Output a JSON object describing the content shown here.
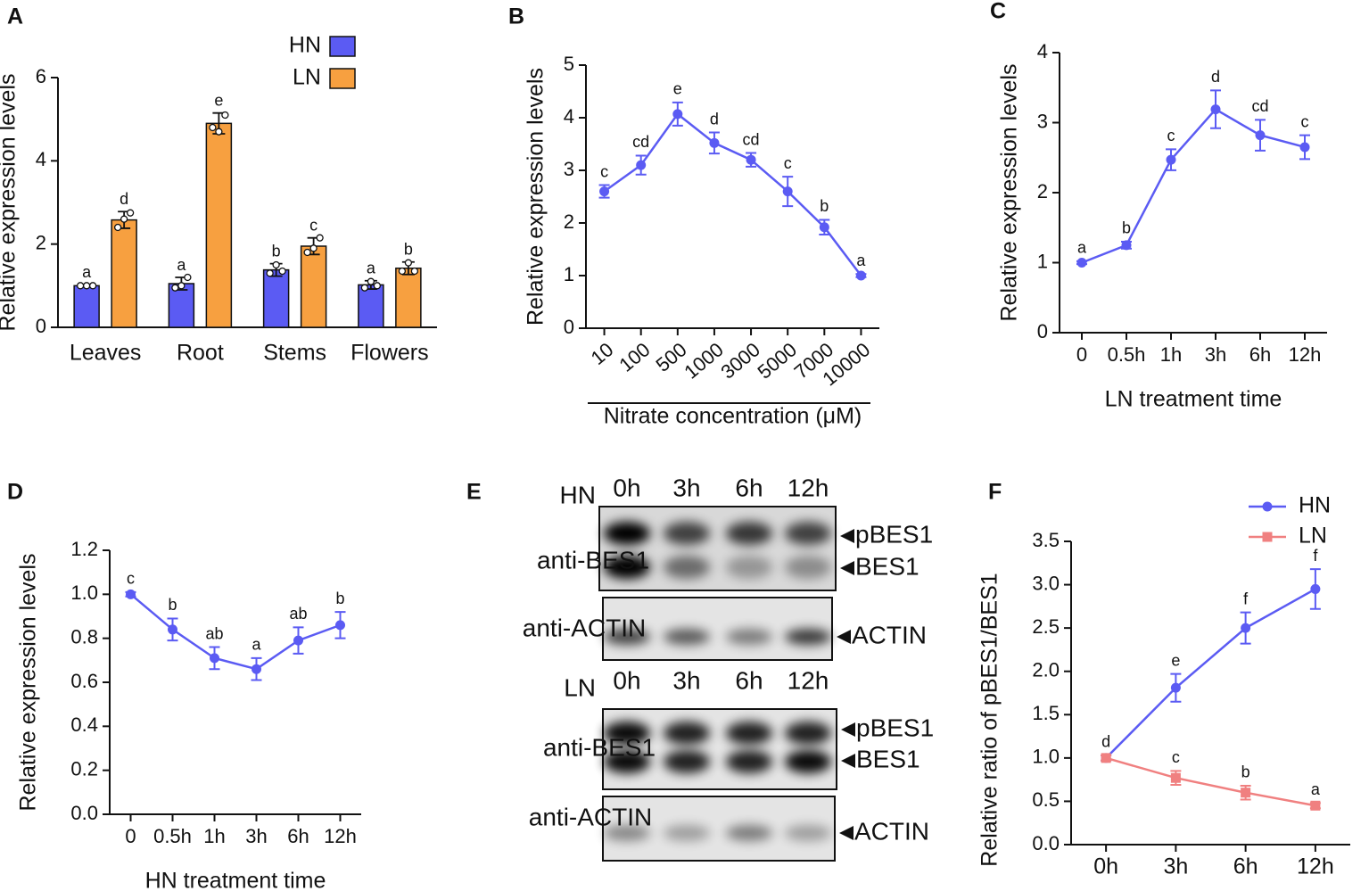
{
  "chart_data": [
    {
      "label": "A",
      "type": "bar",
      "ylabel": "Relative expression levels",
      "categories": [
        "Leaves",
        "Root",
        "Stems",
        "Flowers"
      ],
      "series": [
        {
          "name": "HN",
          "color": "#5b5bf3",
          "values": [
            1.0,
            1.05,
            1.38,
            1.02
          ],
          "errors": [
            0.02,
            0.15,
            0.15,
            0.1
          ],
          "annotations": [
            "a",
            "a",
            "b",
            "a"
          ],
          "replicates": [
            [
              1.0,
              1.0,
              1.0
            ],
            [
              0.95,
              1.0,
              1.2
            ],
            [
              1.3,
              1.5,
              1.35
            ],
            [
              0.95,
              1.1,
              1.0
            ]
          ]
        },
        {
          "name": "LN",
          "color": "#f7a040",
          "values": [
            2.58,
            4.9,
            1.95,
            1.42
          ],
          "errors": [
            0.2,
            0.25,
            0.2,
            0.15
          ],
          "annotations": [
            "d",
            "e",
            "c",
            "b"
          ],
          "replicates": [
            [
              2.4,
              2.6,
              2.75
            ],
            [
              4.8,
              4.7,
              5.1
            ],
            [
              1.8,
              1.9,
              2.15
            ],
            [
              1.35,
              1.55,
              1.35
            ]
          ]
        }
      ],
      "ylim": [
        0,
        6
      ],
      "yticks": [
        0,
        2,
        4,
        6
      ],
      "legend": "top-right"
    },
    {
      "label": "B",
      "type": "line",
      "ylabel": "Relative expression levels",
      "xlabel": "Nitrate concentration (μM)",
      "rotated_xtick_labels": true,
      "categories": [
        "10",
        "100",
        "500",
        "1000",
        "3000",
        "5000",
        "7000",
        "10000"
      ],
      "series": [
        {
          "name": null,
          "color": "#5b5bf3",
          "marker": "circle",
          "values": [
            2.6,
            3.1,
            4.07,
            3.52,
            3.2,
            2.6,
            1.92,
            1.0
          ],
          "errors": [
            0.12,
            0.18,
            0.22,
            0.2,
            0.13,
            0.28,
            0.14,
            0.03
          ],
          "annotations": [
            "c",
            "cd",
            "e",
            "d",
            "cd",
            "c",
            "b",
            "a"
          ]
        }
      ],
      "ylim": [
        0,
        5
      ],
      "yticks": [
        0,
        1,
        2,
        3,
        4,
        5
      ]
    },
    {
      "label": "C",
      "type": "line",
      "ylabel": "Relative expression levels",
      "xlabel": "LN treatment time",
      "categories": [
        "0",
        "0.5h",
        "1h",
        "3h",
        "6h",
        "12h"
      ],
      "series": [
        {
          "name": null,
          "color": "#5b5bf3",
          "marker": "circle",
          "values": [
            1.0,
            1.25,
            2.47,
            3.19,
            2.82,
            2.65
          ],
          "errors": [
            0.02,
            0.05,
            0.15,
            0.27,
            0.22,
            0.17
          ],
          "annotations": [
            "a",
            "b",
            "c",
            "d",
            "cd",
            "c"
          ]
        }
      ],
      "ylim": [
        0,
        4
      ],
      "yticks": [
        0,
        1,
        2,
        3,
        4
      ]
    },
    {
      "label": "D",
      "type": "line",
      "ylabel": "Relative expression levels",
      "xlabel": "HN treatment time",
      "categories": [
        "0",
        "0.5h",
        "1h",
        "3h",
        "6h",
        "12h"
      ],
      "series": [
        {
          "name": null,
          "color": "#5b5bf3",
          "marker": "circle",
          "values": [
            1.0,
            0.84,
            0.71,
            0.66,
            0.79,
            0.86
          ],
          "errors": [
            0.01,
            0.05,
            0.05,
            0.05,
            0.06,
            0.06
          ],
          "annotations": [
            "c",
            "b",
            "ab",
            "a",
            "ab",
            "b"
          ]
        }
      ],
      "ylim": [
        0,
        1.2
      ],
      "yticks": [
        {
          "value": 0,
          "label": "0.0"
        },
        0.2,
        0.4,
        0.6,
        0.8,
        {
          "value": 1,
          "label": "1.0"
        },
        1.2
      ]
    },
    {
      "label": "F",
      "type": "line",
      "ylabel": "Relative ratio of pBES1/BES1",
      "categories": [
        "0h",
        "3h",
        "6h",
        "12h"
      ],
      "series": [
        {
          "name": "HN",
          "color": "#5b5bf3",
          "marker": "circle",
          "values": [
            1.0,
            1.81,
            2.5,
            2.95
          ],
          "errors": [
            0.03,
            0.16,
            0.18,
            0.23
          ],
          "annotations": [
            "d",
            "e",
            "f",
            "f"
          ]
        },
        {
          "name": "LN",
          "color": "#f08080",
          "marker": "square",
          "values": [
            1.0,
            0.77,
            0.6,
            0.45
          ],
          "errors": [
            0.03,
            0.08,
            0.08,
            0.03
          ],
          "annotations": [
            null,
            "c",
            "b",
            "a"
          ]
        }
      ],
      "ylim": [
        0,
        3.5
      ],
      "yticks": [
        {
          "value": 0,
          "label": "0.0"
        },
        0.5,
        {
          "value": 1,
          "label": "1.0"
        },
        1.5,
        {
          "value": 2,
          "label": "2.0"
        },
        2.5,
        {
          "value": 3,
          "label": "3.0"
        },
        3.5
      ],
      "legend": "top-right"
    }
  ],
  "blot": {
    "label": "E",
    "panels": [
      {
        "condition": "HN",
        "lanes": [
          "0h",
          "3h",
          "6h",
          "12h"
        ],
        "blots": [
          {
            "antibody": "anti-BES1",
            "bands": [
              "pBES1",
              "BES1"
            ]
          },
          {
            "antibody": "anti-ACTIN",
            "bands": [
              "ACTIN"
            ]
          }
        ]
      },
      {
        "condition": "LN",
        "lanes": [
          "0h",
          "3h",
          "6h",
          "12h"
        ],
        "blots": [
          {
            "antibody": "anti-BES1",
            "bands": [
              "pBES1",
              "BES1"
            ]
          },
          {
            "antibody": "anti-ACTIN",
            "bands": [
              "ACTIN"
            ]
          }
        ]
      }
    ]
  }
}
